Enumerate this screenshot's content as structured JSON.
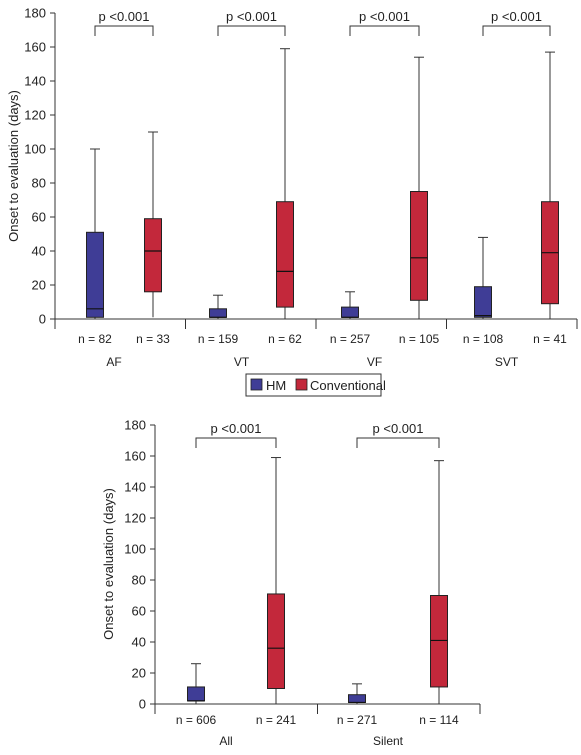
{
  "colors": {
    "HM": "#3f3d96",
    "Conventional": "#c3283b",
    "line": "#333333"
  },
  "legend": {
    "items": [
      "HM",
      "Conventional"
    ]
  },
  "chart_data": [
    {
      "type": "box",
      "ylabel": "Onset to evaluation (days)",
      "ylim": [
        0,
        180
      ],
      "yticks": [
        0,
        20,
        40,
        60,
        80,
        100,
        120,
        140,
        160,
        180
      ],
      "groups": [
        {
          "label": "AF",
          "pvalue": "p <0.001",
          "boxes": [
            {
              "series": "HM",
              "n": "n = 82",
              "min": 0,
              "q1": 1,
              "median": 6,
              "q3": 51,
              "max": 100
            },
            {
              "series": "Conventional",
              "n": "n = 33",
              "min": 1,
              "q1": 16,
              "median": 40,
              "q3": 59,
              "max": 110
            }
          ]
        },
        {
          "label": "VT",
          "pvalue": "p <0.001",
          "boxes": [
            {
              "series": "HM",
              "n": "n = 159",
              "min": 0,
              "q1": 1,
              "median": 1,
              "q3": 6,
              "max": 14
            },
            {
              "series": "Conventional",
              "n": "n = 62",
              "min": 0,
              "q1": 7,
              "median": 28,
              "q3": 69,
              "max": 159
            }
          ]
        },
        {
          "label": "VF",
          "pvalue": "p <0.001",
          "boxes": [
            {
              "series": "HM",
              "n": "n = 257",
              "min": 0,
              "q1": 1,
              "median": 1,
              "q3": 7,
              "max": 16
            },
            {
              "series": "Conventional",
              "n": "n = 105",
              "min": 0,
              "q1": 11,
              "median": 36,
              "q3": 75,
              "max": 154
            }
          ]
        },
        {
          "label": "SVT",
          "pvalue": "p <0.001",
          "boxes": [
            {
              "series": "HM",
              "n": "n = 108",
              "min": 0,
              "q1": 1,
              "median": 2,
              "q3": 19,
              "max": 48
            },
            {
              "series": "Conventional",
              "n": "n = 41",
              "min": 0,
              "q1": 9,
              "median": 39,
              "q3": 69,
              "max": 157
            }
          ]
        }
      ]
    },
    {
      "type": "box",
      "ylabel": "Onset to evaluation (days)",
      "ylim": [
        0,
        180
      ],
      "yticks": [
        0,
        20,
        40,
        60,
        80,
        100,
        120,
        140,
        160,
        180
      ],
      "groups": [
        {
          "label": "All",
          "pvalue": "p <0.001",
          "boxes": [
            {
              "series": "HM",
              "n": "n = 606",
              "min": 0,
              "q1": 2,
              "median": 2,
              "q3": 11,
              "max": 26
            },
            {
              "series": "Conventional",
              "n": "n = 241",
              "min": 0,
              "q1": 10,
              "median": 36,
              "q3": 71,
              "max": 159
            }
          ]
        },
        {
          "label": "Silent",
          "pvalue": "p <0.001",
          "boxes": [
            {
              "series": "HM",
              "n": "n = 271",
              "min": 0,
              "q1": 1,
              "median": 1,
              "q3": 6,
              "max": 13
            },
            {
              "series": "Conventional",
              "n": "n = 114",
              "min": 0,
              "q1": 11,
              "median": 41,
              "q3": 70,
              "max": 157
            }
          ]
        }
      ]
    }
  ]
}
